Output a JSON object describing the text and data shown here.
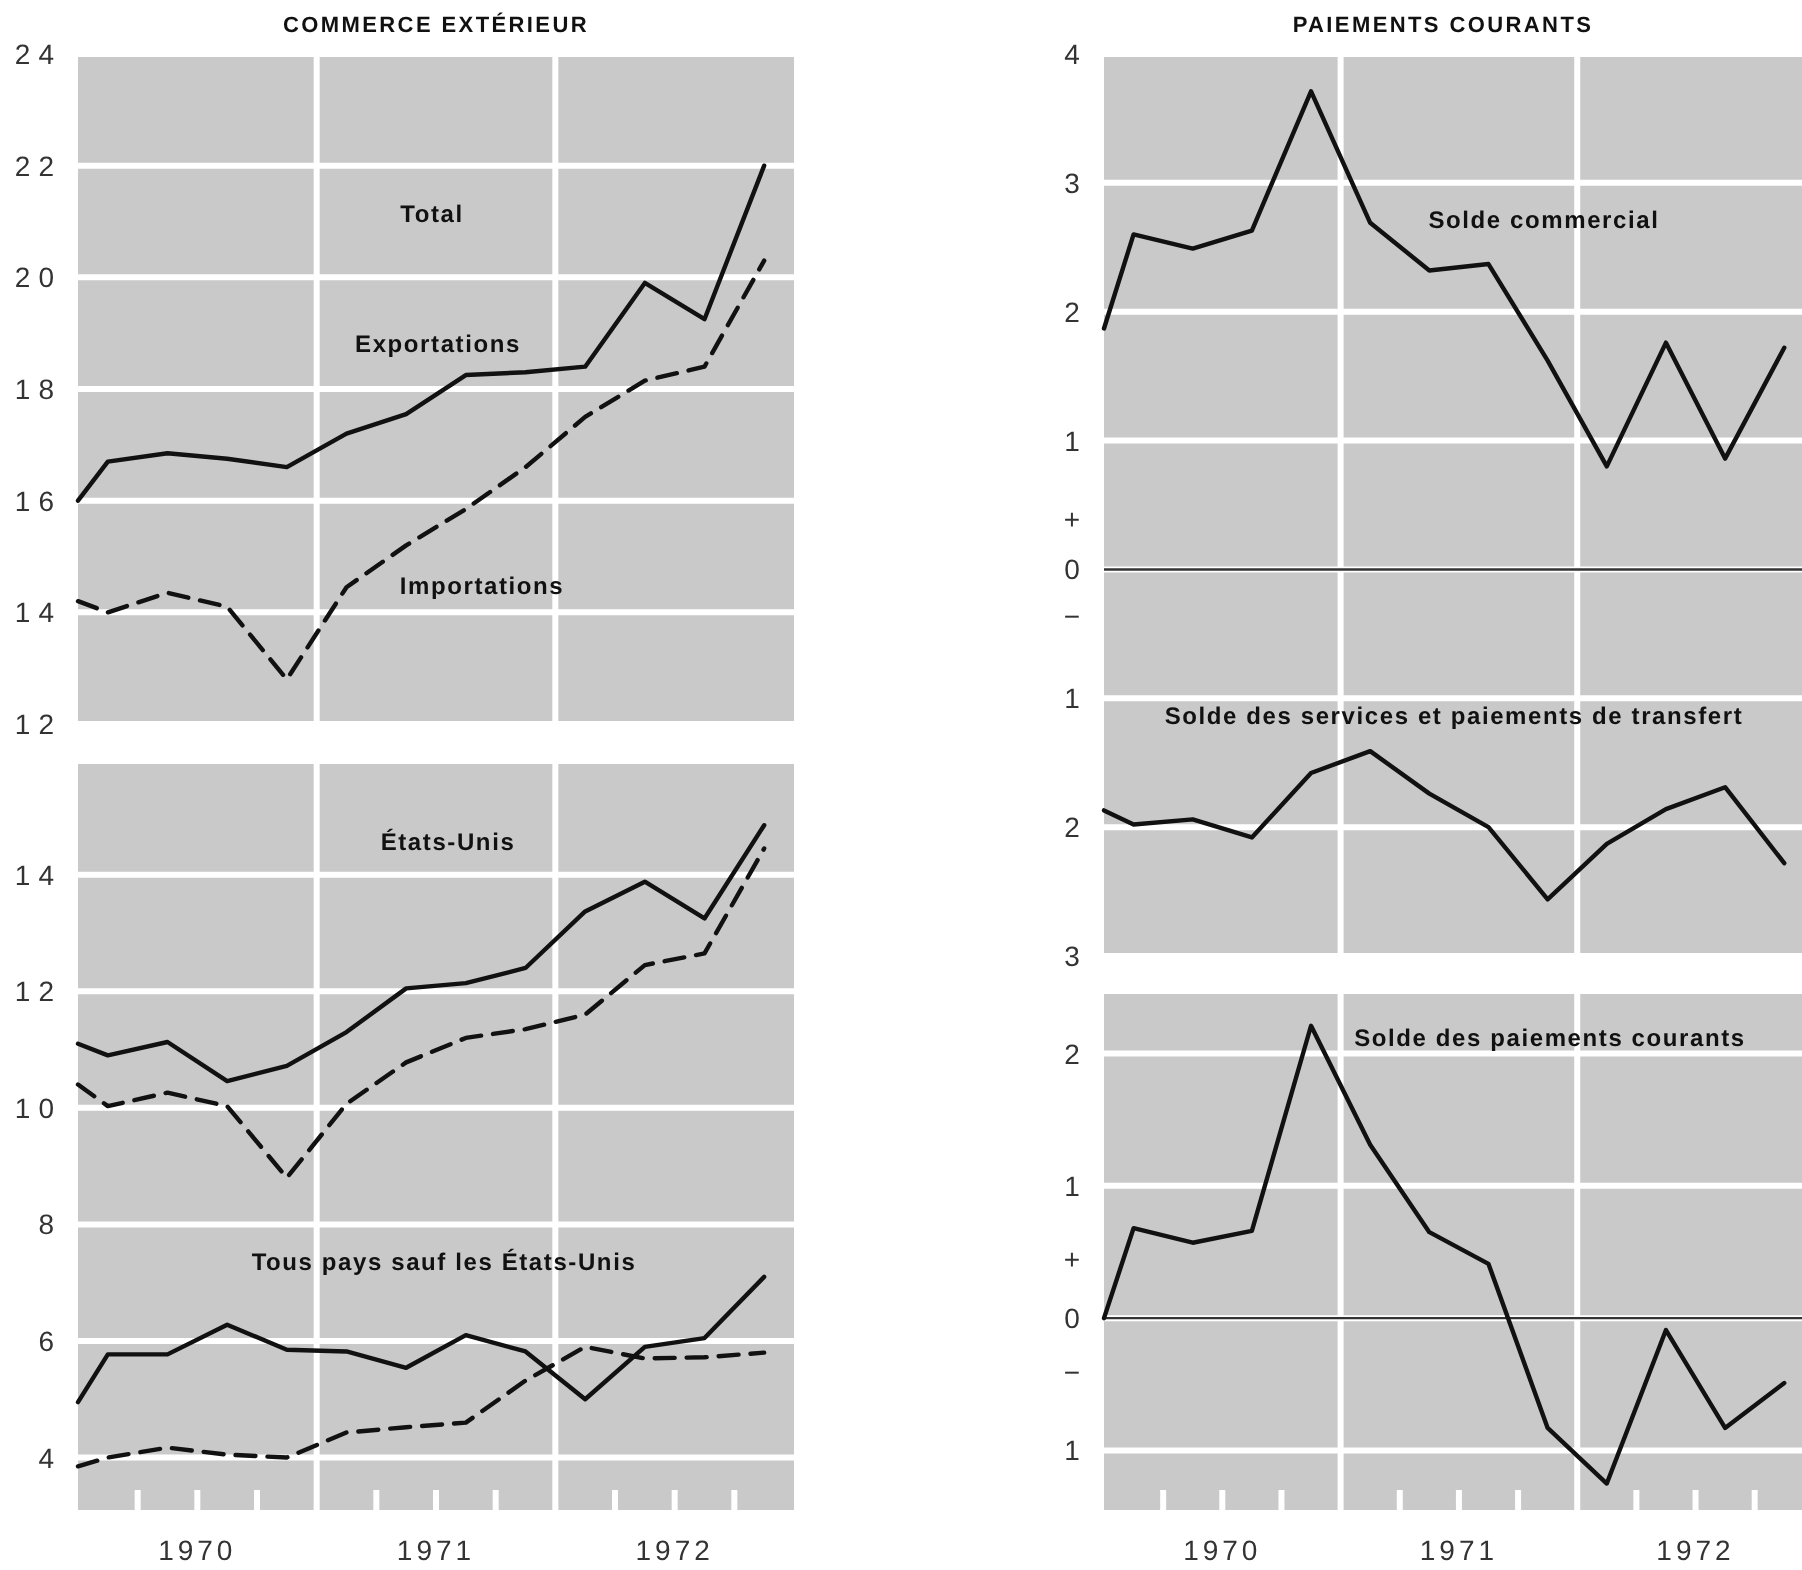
{
  "chart_data": [
    {
      "type": "line",
      "title": "COMMERCE EXTÉRIEUR",
      "annotations": [
        "Total"
      ],
      "x": [
        1970,
        1970.125,
        1970.375,
        1970.625,
        1970.875,
        1971.125,
        1971.375,
        1971.625,
        1971.875,
        1972.125,
        1972.375,
        1972.625,
        1972.875
      ],
      "xlim": [
        1970,
        1973
      ],
      "ylim": [
        12,
        24
      ],
      "yticks": [
        12,
        14,
        16,
        18,
        20,
        22,
        24
      ],
      "grid": "y",
      "tick_labels": "y",
      "ref_lines": [
        {
          "axis": "x",
          "value": 1971,
          "color": "#ffffff"
        },
        {
          "axis": "x",
          "value": 1972,
          "color": "#ffffff"
        }
      ],
      "series": [
        {
          "name": "Exportations",
          "color": "#111111",
          "line_style": "solid",
          "values": [
            16.0,
            16.7,
            16.85,
            16.75,
            16.6,
            17.2,
            17.55,
            18.25,
            18.3,
            18.4,
            19.9,
            19.25,
            22.0
          ]
        },
        {
          "name": "Importations",
          "color": "#111111",
          "line_style": "dashed",
          "values": [
            14.2,
            14.0,
            14.35,
            14.1,
            12.8,
            14.45,
            15.2,
            15.85,
            16.6,
            17.5,
            18.15,
            18.4,
            20.3
          ]
        }
      ]
    },
    {
      "type": "line",
      "annotations": [
        "États-Unis",
        "Tous pays sauf les États-Unis"
      ],
      "x": [
        1970,
        1970.125,
        1970.375,
        1970.625,
        1970.875,
        1971.125,
        1971.375,
        1971.625,
        1971.875,
        1972.125,
        1972.375,
        1972.625,
        1972.875
      ],
      "xlim": [
        1970,
        1973
      ],
      "ylim": [
        3.1,
        15.9
      ],
      "yticks": [
        4,
        6,
        8,
        10,
        12,
        14
      ],
      "xticks": [
        {
          "value": 1970.25,
          "label": null
        },
        {
          "value": 1970.5,
          "label": "1970"
        },
        {
          "value": 1970.75,
          "label": null
        },
        {
          "value": 1971.25,
          "label": null
        },
        {
          "value": 1971.5,
          "label": "1971"
        },
        {
          "value": 1971.75,
          "label": null
        },
        {
          "value": 1972.25,
          "label": null
        },
        {
          "value": 1972.5,
          "label": "1972"
        },
        {
          "value": 1972.75,
          "label": null
        }
      ],
      "grid": "y",
      "ref_lines": [
        {
          "axis": "x",
          "value": 1971,
          "color": "#ffffff"
        },
        {
          "axis": "x",
          "value": 1972,
          "color": "#ffffff"
        }
      ],
      "series": [
        {
          "color": "#111111",
          "line_style": "solid",
          "values": [
            11.1,
            10.9,
            11.13,
            10.46,
            10.72,
            11.3,
            12.05,
            12.14,
            12.4,
            13.37,
            13.88,
            13.25,
            14.85
          ]
        },
        {
          "color": "#111111",
          "line_style": "dashed",
          "values": [
            10.4,
            10.03,
            10.26,
            10.03,
            8.8,
            10.07,
            10.78,
            11.2,
            11.35,
            11.6,
            12.45,
            12.65,
            14.45
          ]
        },
        {
          "color": "#111111",
          "line_style": "solid",
          "values": [
            4.95,
            5.77,
            5.77,
            6.28,
            5.85,
            5.82,
            5.54,
            6.1,
            5.82,
            5.0,
            5.9,
            6.05,
            7.1
          ]
        },
        {
          "color": "#111111",
          "line_style": "dashed",
          "values": [
            3.85,
            4.0,
            4.17,
            4.05,
            4.0,
            4.43,
            4.52,
            4.6,
            5.32,
            5.9,
            5.7,
            5.72,
            5.8
          ]
        }
      ]
    },
    {
      "type": "line",
      "title": "PAIEMENTS COURANTS",
      "x": [
        1970,
        1970.125,
        1970.375,
        1970.625,
        1970.875,
        1971.125,
        1971.375,
        1971.625,
        1971.875,
        1972.125,
        1972.375,
        1972.625,
        1972.875
      ],
      "xlim": [
        1970,
        1972.95
      ],
      "ylim": [
        -3,
        4
      ],
      "yticks": [
        {
          "value": -3,
          "label": "3"
        },
        {
          "value": -2,
          "label": "2"
        },
        {
          "value": -1,
          "label": "1"
        },
        {
          "value": -0.36,
          "label": "−"
        },
        0,
        {
          "value": 0.39,
          "label": "+"
        },
        1,
        2,
        3,
        4
      ],
      "grid": "y",
      "tick_labels": "y",
      "ref_lines": [
        {
          "axis": "x",
          "value": 1971,
          "color": "#ffffff"
        },
        {
          "axis": "x",
          "value": 1972,
          "color": "#ffffff"
        },
        {
          "axis": "y",
          "value": 0,
          "color": "#333333"
        }
      ],
      "series": [
        {
          "name": "Solde commercial",
          "color": "#111111",
          "line_style": "solid",
          "values": [
            1.87,
            2.6,
            2.49,
            2.63,
            3.71,
            2.69,
            2.32,
            2.37,
            1.62,
            0.8,
            1.76,
            0.86,
            1.72
          ]
        },
        {
          "name": "Solde des services et paiements de transfert",
          "color": "#111111",
          "line_style": "solid",
          "values": [
            -1.87,
            -1.98,
            -1.94,
            -2.08,
            -1.58,
            -1.41,
            -1.74,
            -2.0,
            -2.56,
            -2.13,
            -1.86,
            -1.69,
            -2.28
          ]
        }
      ]
    },
    {
      "type": "line",
      "x": [
        1970,
        1970.125,
        1970.375,
        1970.625,
        1970.875,
        1971.125,
        1971.375,
        1971.625,
        1971.875,
        1972.125,
        1972.375,
        1972.625,
        1972.875
      ],
      "xlim": [
        1970,
        1972.95
      ],
      "ylim": [
        -1.45,
        2.45
      ],
      "yticks": [
        {
          "value": -1,
          "label": "1"
        },
        {
          "value": -0.41,
          "label": "−"
        },
        0,
        {
          "value": 0.45,
          "label": "+"
        },
        1,
        2
      ],
      "xticks": [
        {
          "value": 1970.25,
          "label": null
        },
        {
          "value": 1970.5,
          "label": "1970"
        },
        {
          "value": 1970.75,
          "label": null
        },
        {
          "value": 1971.25,
          "label": null
        },
        {
          "value": 1971.5,
          "label": "1971"
        },
        {
          "value": 1971.75,
          "label": null
        },
        {
          "value": 1972.25,
          "label": null
        },
        {
          "value": 1972.5,
          "label": "1972"
        },
        {
          "value": 1972.75,
          "label": null
        }
      ],
      "grid": "y",
      "ref_lines": [
        {
          "axis": "x",
          "value": 1971,
          "color": "#ffffff"
        },
        {
          "axis": "x",
          "value": 1972,
          "color": "#ffffff"
        },
        {
          "axis": "y",
          "value": 0,
          "color": "#333333"
        }
      ],
      "series": [
        {
          "name": "Solde des paiements courants",
          "color": "#111111",
          "line_style": "solid",
          "values": [
            0.0,
            0.68,
            0.57,
            0.66,
            2.21,
            1.31,
            0.65,
            0.41,
            -0.83,
            -1.25,
            -0.09,
            -0.83,
            -0.49
          ]
        }
      ]
    }
  ]
}
